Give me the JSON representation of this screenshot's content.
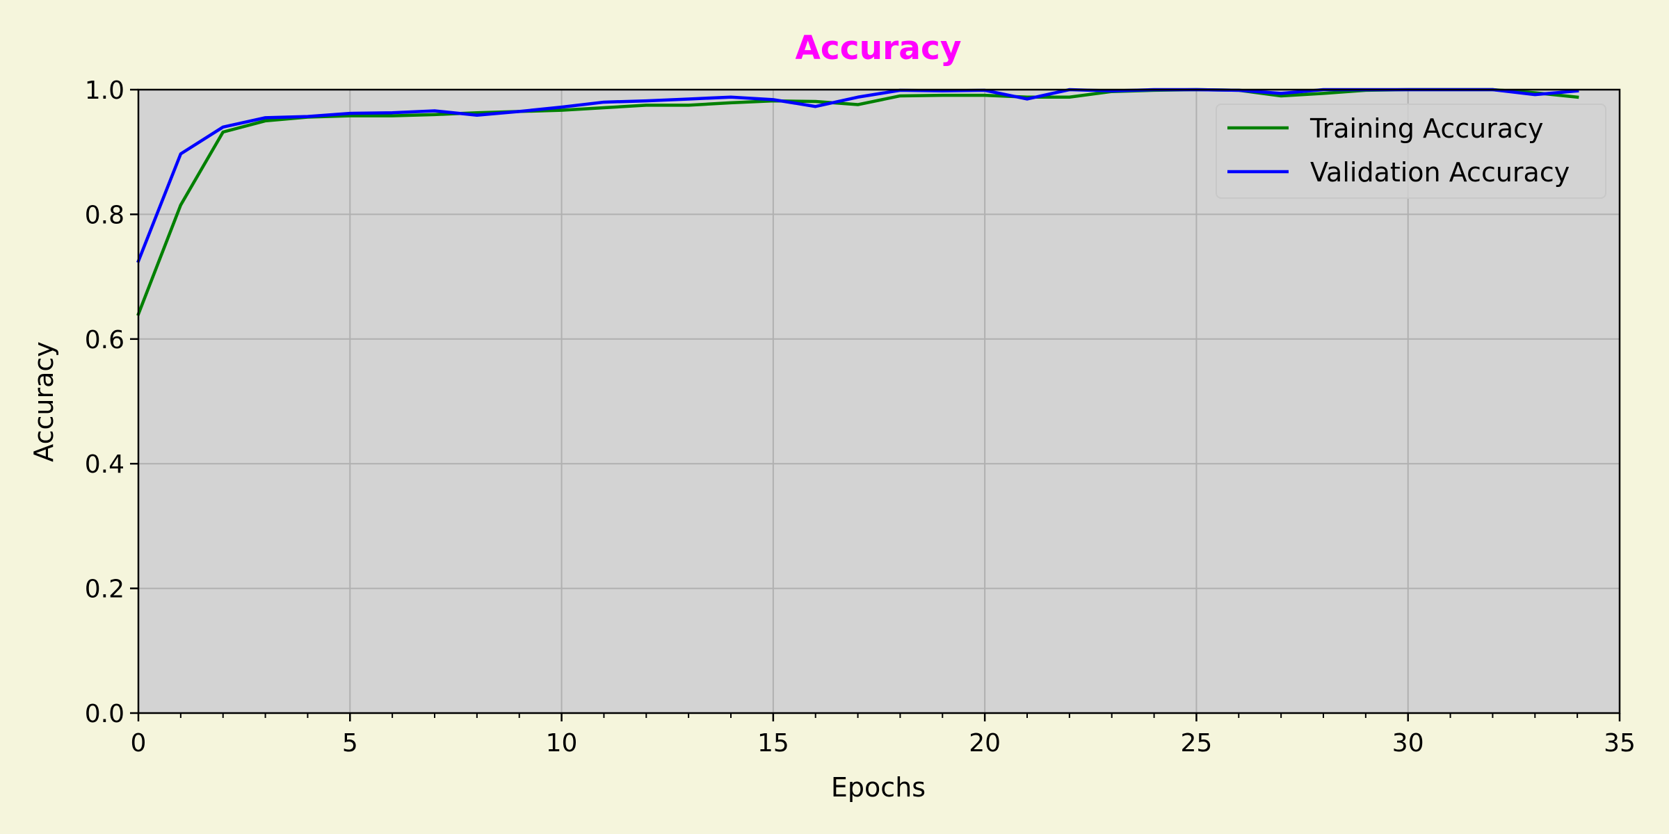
{
  "chart_data": {
    "type": "line",
    "title": "Accuracy",
    "xlabel": "Epochs",
    "ylabel": "Accuracy",
    "xlim": [
      0,
      35
    ],
    "ylim": [
      0.0,
      1.0
    ],
    "xticks": [
      0,
      5,
      10,
      15,
      20,
      25,
      30,
      35
    ],
    "xtick_labels": [
      "0",
      "5",
      "10",
      "15",
      "20",
      "25",
      "30",
      "35"
    ],
    "yticks": [
      0.0,
      0.2,
      0.4,
      0.6,
      0.8,
      1.0
    ],
    "ytick_labels": [
      "0.0",
      "0.2",
      "0.4",
      "0.6",
      "0.8",
      "1.0"
    ],
    "x_minor_step": 1,
    "grid": true,
    "legend_position": "top-right",
    "x": [
      0,
      1,
      2,
      3,
      4,
      5,
      6,
      7,
      8,
      9,
      10,
      11,
      12,
      13,
      14,
      15,
      16,
      17,
      18,
      19,
      20,
      21,
      22,
      23,
      24,
      25,
      26,
      27,
      28,
      29,
      30,
      31,
      32,
      33,
      34
    ],
    "series": [
      {
        "name": "Training Accuracy",
        "color": "#008000",
        "values": [
          0.64,
          0.815,
          0.932,
          0.95,
          0.956,
          0.958,
          0.958,
          0.96,
          0.963,
          0.965,
          0.967,
          0.971,
          0.975,
          0.975,
          0.979,
          0.982,
          0.981,
          0.976,
          0.99,
          0.991,
          0.991,
          0.988,
          0.988,
          0.997,
          0.999,
          1.0,
          0.999,
          0.99,
          0.994,
          0.999,
          1.0,
          1.0,
          1.0,
          0.995,
          0.988
        ]
      },
      {
        "name": "Validation Accuracy",
        "color": "#0000ff",
        "values": [
          0.725,
          0.897,
          0.94,
          0.955,
          0.957,
          0.962,
          0.963,
          0.966,
          0.959,
          0.965,
          0.972,
          0.98,
          0.982,
          0.985,
          0.988,
          0.984,
          0.973,
          0.988,
          0.999,
          0.998,
          0.999,
          0.985,
          1.0,
          0.998,
          1.0,
          1.0,
          0.999,
          0.994,
          1.0,
          1.0,
          1.0,
          1.0,
          1.0,
          0.992,
          0.998
        ]
      }
    ]
  },
  "colors": {
    "page_background": "#f5f5dc",
    "plot_background": "#d3d3d3",
    "grid": "#b0b0b0",
    "title": "#ff00ff"
  }
}
